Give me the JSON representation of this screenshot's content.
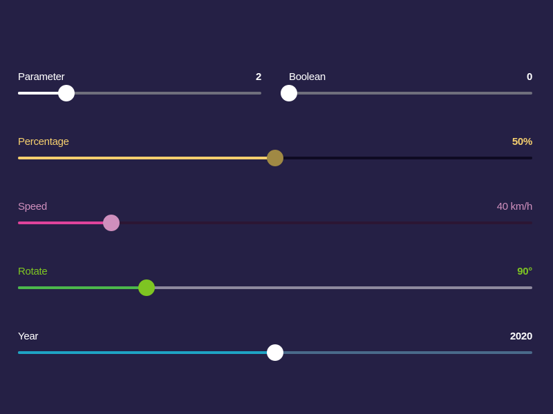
{
  "sliders": [
    {
      "id": "parameter",
      "label": "Parameter",
      "value": "2",
      "fraction": 0.2,
      "label_color": "#ffffff",
      "fill_color": "#ffffff",
      "track_color": "#6f6f7c",
      "thumb_color": "#ffffff"
    },
    {
      "id": "boolean",
      "label": "Boolean",
      "value": "0",
      "fraction": 0,
      "label_color": "#ffffff",
      "fill_color": "#ffffff",
      "track_color": "#6f6f7c",
      "thumb_color": "#ffffff"
    },
    {
      "id": "percentage",
      "label": "Percentage",
      "value": "50%",
      "fraction": 0.5,
      "label_color": "#f5cf6e",
      "fill_color": "#f5cf6e",
      "track_color": "#0e0a22",
      "thumb_color": "#a08944"
    },
    {
      "id": "speed",
      "label": "Speed",
      "value": "40 km/h",
      "fraction": 0.182,
      "label_color": "#cf8fbd",
      "fill_color": "#e0439c",
      "track_color": "#2c1634",
      "thumb_color": "#cf8fbd"
    },
    {
      "id": "rotate",
      "label": "Rotate",
      "value": "90°",
      "fraction": 0.25,
      "label_color": "#7ec522",
      "fill_color": "#4cb84c",
      "track_color": "#8e899e",
      "thumb_color": "#7ec522"
    },
    {
      "id": "year",
      "label": "Year",
      "value": "2020",
      "fraction": 0.5,
      "label_color": "#ffffff",
      "fill_color": "#1fa3c4",
      "track_color": "#4a6a8a",
      "thumb_color": "#ffffff"
    }
  ],
  "background": "#252045"
}
